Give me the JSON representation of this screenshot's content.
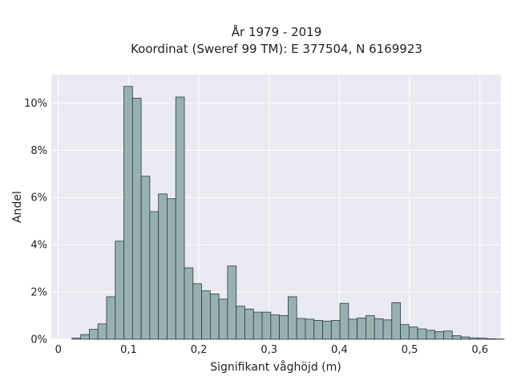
{
  "chart_data": {
    "type": "bar",
    "title_lines": [
      "År 1979 - 2019",
      "Koordinat (Sweref 99 TM): E 377504, N 6169923"
    ],
    "xlabel": "Signifikant våghöjd (m)",
    "ylabel": "Andel",
    "xlim": [
      -0.01,
      0.63
    ],
    "ylim": [
      0,
      11.2
    ],
    "x_ticks": [
      {
        "value": 0.0,
        "label": "0"
      },
      {
        "value": 0.1,
        "label": "0,1"
      },
      {
        "value": 0.2,
        "label": "0,2"
      },
      {
        "value": 0.3,
        "label": "0,3"
      },
      {
        "value": 0.4,
        "label": "0,4"
      },
      {
        "value": 0.5,
        "label": "0,5"
      },
      {
        "value": 0.6,
        "label": "0,6"
      }
    ],
    "y_ticks": [
      {
        "value": 0,
        "label": "0%"
      },
      {
        "value": 2,
        "label": "2%"
      },
      {
        "value": 4,
        "label": "4%"
      },
      {
        "value": 6,
        "label": "6%"
      },
      {
        "value": 8,
        "label": "8%"
      },
      {
        "value": 10,
        "label": "10%"
      }
    ],
    "bin_start": 0.0195,
    "bin_width": 0.0123,
    "values": [
      0.05,
      0.2,
      0.42,
      0.65,
      1.8,
      4.15,
      10.7,
      10.2,
      6.9,
      5.4,
      6.15,
      5.95,
      10.25,
      3.02,
      2.35,
      2.05,
      1.92,
      1.7,
      3.1,
      1.4,
      1.28,
      1.15,
      1.15,
      1.03,
      1.0,
      1.8,
      0.88,
      0.85,
      0.8,
      0.77,
      0.8,
      1.52,
      0.85,
      0.9,
      1.0,
      0.87,
      0.82,
      1.55,
      0.62,
      0.52,
      0.44,
      0.38,
      0.32,
      0.35,
      0.15,
      0.1,
      0.06,
      0.05,
      0.02,
      0.01
    ],
    "bar_color": "#97b1b0",
    "bar_edge_color": "#2f3b3a",
    "plot_background": "#eaeaf2",
    "grid": true,
    "legend": "none"
  }
}
